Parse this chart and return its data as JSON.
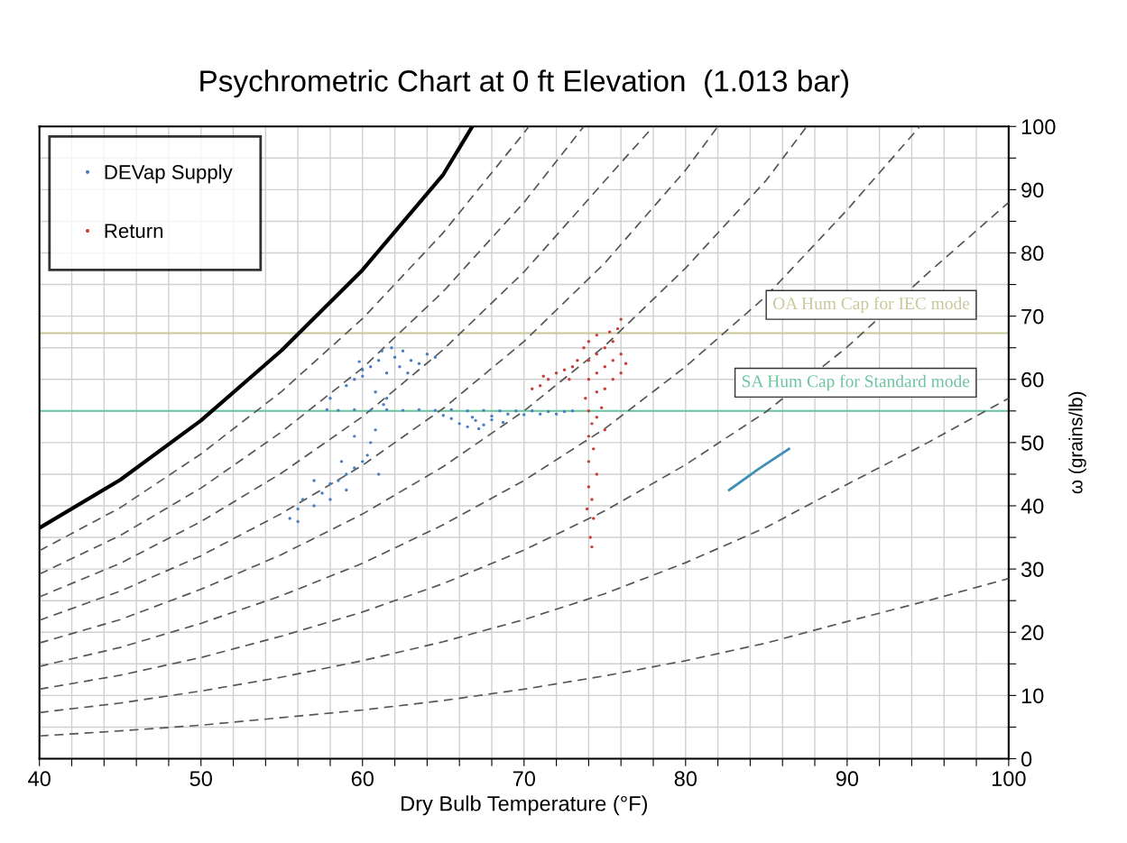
{
  "chart_data": {
    "type": "scatter",
    "title": "Psychrometric Chart at 0 ft Elevation  (1.013 bar)",
    "xlabel": "Dry Bulb Temperature (°F)",
    "ylabel": "ω (grains/lb)",
    "xlim": [
      40,
      100
    ],
    "ylim": [
      0,
      100
    ],
    "xticks": [
      40,
      {
        "value": 42,
        "label": null
      },
      {
        "value": 44,
        "label": null
      },
      {
        "value": 46,
        "label": null
      },
      {
        "value": 48,
        "label": null
      },
      50,
      {
        "value": 52,
        "label": null
      },
      {
        "value": 54,
        "label": null
      },
      {
        "value": 56,
        "label": null
      },
      {
        "value": 58,
        "label": null
      },
      60,
      {
        "value": 62,
        "label": null
      },
      {
        "value": 64,
        "label": null
      },
      {
        "value": 66,
        "label": null
      },
      {
        "value": 68,
        "label": null
      },
      70,
      {
        "value": 72,
        "label": null
      },
      {
        "value": 74,
        "label": null
      },
      {
        "value": 76,
        "label": null
      },
      {
        "value": 78,
        "label": null
      },
      80,
      {
        "value": 82,
        "label": null
      },
      {
        "value": 84,
        "label": null
      },
      {
        "value": 86,
        "label": null
      },
      {
        "value": 88,
        "label": null
      },
      90,
      {
        "value": 92,
        "label": null
      },
      {
        "value": 94,
        "label": null
      },
      {
        "value": 96,
        "label": null
      },
      {
        "value": 98,
        "label": null
      },
      100
    ],
    "yticks": [
      0,
      {
        "value": 5,
        "label": null
      },
      10,
      {
        "value": 15,
        "label": null
      },
      20,
      {
        "value": 25,
        "label": null
      },
      30,
      {
        "value": 35,
        "label": null
      },
      40,
      {
        "value": 45,
        "label": null
      },
      50,
      {
        "value": 55,
        "label": null
      },
      60,
      {
        "value": 65,
        "label": null
      },
      70,
      {
        "value": 75,
        "label": null
      },
      80,
      {
        "value": 85,
        "label": null
      },
      90,
      {
        "value": 95,
        "label": null
      },
      100
    ],
    "grid": true,
    "legend": "top left",
    "marker": "circle",
    "ref_lines": [
      {
        "axis": "y",
        "value": 67.3,
        "label": "OA Hum Cap for IEC mode",
        "color": "#c8c89a"
      },
      {
        "axis": "y",
        "value": 55,
        "label": "SA Hum Cap for Standard mode",
        "color": "#6cc4a0"
      }
    ],
    "series": [
      {
        "type": "line",
        "color": "#000000",
        "line_style": "solid",
        "marker": "none",
        "x": [
          40,
          45,
          50,
          55,
          60,
          65,
          66.8
        ],
        "values": [
          36.5,
          44.1,
          53.5,
          64.6,
          77.3,
          92.4,
          100
        ]
      },
      {
        "type": "line",
        "color": "#555555",
        "line_style": "dashed",
        "marker": "none",
        "x": [
          40,
          45,
          50,
          55,
          60,
          65,
          70,
          70.3
        ],
        "values": [
          32.9,
          39.7,
          48.2,
          58.1,
          69.6,
          83.2,
          99,
          100
        ]
      },
      {
        "type": "line",
        "color": "#555555",
        "line_style": "dashed",
        "marker": "none",
        "x": [
          40,
          45,
          50,
          55,
          60,
          65,
          70,
          73.7
        ],
        "values": [
          29.2,
          35.3,
          42.8,
          51.7,
          61.8,
          73.9,
          88,
          100
        ]
      },
      {
        "type": "line",
        "color": "#555555",
        "line_style": "dashed",
        "marker": "none",
        "x": [
          40,
          45,
          50,
          55,
          60,
          65,
          70,
          75,
          78
        ],
        "values": [
          25.6,
          30.9,
          37.5,
          45.2,
          54.1,
          64.7,
          77,
          91.4,
          100
        ]
      },
      {
        "type": "line",
        "color": "#555555",
        "line_style": "dashed",
        "marker": "none",
        "x": [
          40,
          45,
          50,
          55,
          60,
          65,
          70,
          75,
          80,
          82
        ],
        "values": [
          21.9,
          26.5,
          32.1,
          38.8,
          46.4,
          55.4,
          66,
          78.4,
          93.1,
          100
        ]
      },
      {
        "type": "line",
        "color": "#555555",
        "line_style": "dashed",
        "marker": "none",
        "x": [
          40,
          45,
          50,
          55,
          60,
          65,
          70,
          75,
          80,
          85,
          87.5
        ],
        "values": [
          18.3,
          22,
          26.8,
          32.3,
          38.7,
          46.2,
          55,
          65.3,
          77.6,
          91.5,
          100
        ]
      },
      {
        "type": "line",
        "color": "#555555",
        "line_style": "dashed",
        "marker": "none",
        "x": [
          40,
          45,
          50,
          55,
          60,
          65,
          70,
          75,
          80,
          85,
          90,
          94.5
        ],
        "values": [
          14.6,
          17.6,
          21.4,
          25.8,
          30.9,
          37,
          44,
          52.2,
          62,
          73.2,
          86.8,
          100
        ]
      },
      {
        "type": "line",
        "color": "#555555",
        "line_style": "dashed",
        "marker": "none",
        "x": [
          40,
          45,
          50,
          55,
          60,
          65,
          70,
          75,
          80,
          85,
          90,
          95,
          100
        ],
        "values": [
          11,
          13.2,
          16,
          19.4,
          23.2,
          27.7,
          33,
          39.2,
          46.5,
          54.9,
          65.1,
          76.8,
          88
        ]
      },
      {
        "type": "line",
        "color": "#555555",
        "line_style": "dashed",
        "marker": "none",
        "x": [
          40,
          45,
          50,
          55,
          60,
          65,
          70,
          75,
          80,
          85,
          90,
          95,
          100
        ],
        "values": [
          7.3,
          8.8,
          10.7,
          12.9,
          15.5,
          18.5,
          22,
          26.1,
          31,
          36.6,
          43.4,
          50,
          57
        ]
      },
      {
        "type": "line",
        "color": "#555555",
        "line_style": "dashed",
        "marker": "none",
        "x": [
          40,
          45,
          50,
          55,
          60,
          65,
          70,
          75,
          80,
          85,
          90,
          95,
          100
        ],
        "values": [
          3.6,
          4.4,
          5.3,
          6.5,
          7.7,
          9.2,
          11,
          13.1,
          15.5,
          18.3,
          21.7,
          25,
          28.5
        ]
      },
      {
        "name": "DEVap Supply",
        "color": "#4a7fc1",
        "x": [
          57.8,
          58.5,
          59.5,
          60.5,
          61.5,
          62.5,
          63.5,
          64.5,
          65.5,
          66.5,
          67.5,
          68.5,
          69.5,
          70.5,
          71.5,
          72.5,
          73.0,
          69,
          70,
          71,
          72,
          68,
          65.5,
          66,
          66.5,
          67,
          67.5,
          68,
          66.8,
          65,
          67.2,
          68.7,
          58,
          59,
          59.5,
          60,
          60.5,
          61,
          61.2,
          61.8,
          62,
          62.3,
          61.5,
          62.5,
          63,
          63.5,
          64,
          64.5,
          60.8,
          61.5,
          61.3,
          60,
          62.8,
          59.8,
          55.5,
          56,
          56.3,
          57,
          57.5,
          58,
          58.5,
          59,
          59.5,
          60,
          60.3,
          59,
          58,
          57,
          60.5,
          60.8,
          59.5,
          61,
          56,
          58.7
        ],
        "values": [
          55.2,
          55.1,
          55.2,
          55.1,
          55.2,
          55.1,
          55.2,
          55.1,
          55.2,
          55.0,
          55.1,
          55.0,
          55.0,
          55.0,
          54.9,
          54.9,
          55.0,
          54.5,
          54.4,
          54.5,
          54.5,
          54.2,
          53.8,
          53,
          52.5,
          53.5,
          52.8,
          53.6,
          54,
          54.3,
          52.2,
          53.2,
          57,
          59,
          60,
          61.5,
          62,
          63,
          64.5,
          65,
          63.5,
          62,
          61,
          64.5,
          63,
          62.5,
          64,
          63.5,
          58,
          57,
          56,
          60.5,
          61,
          62.8,
          38,
          39.5,
          41,
          40,
          42,
          43.5,
          44,
          45,
          46,
          47,
          48,
          42.5,
          41,
          44,
          50,
          52,
          51,
          45,
          37.5,
          47
        ]
      },
      {
        "name": "Return",
        "color": "#c9413a",
        "x": [
          73.8,
          74,
          74,
          74,
          74.5,
          74.5,
          74.5,
          74.5,
          75,
          75,
          75,
          75.5,
          75.5,
          75.5,
          76,
          76,
          76.3,
          75.8,
          76,
          75.3,
          73.7,
          74,
          74.2,
          74.5,
          74,
          74.3,
          74,
          74.5,
          74,
          74.2,
          73.9,
          74.3,
          74.1,
          74.2,
          74.8,
          75,
          70.5,
          71,
          71.5,
          72,
          72.5,
          73,
          73.3,
          71.2,
          72.8
        ],
        "values": [
          57,
          60,
          63,
          66,
          58,
          61,
          64,
          67,
          58.5,
          62,
          65,
          60,
          63,
          66,
          61,
          64,
          62.5,
          68,
          69.5,
          67.5,
          65,
          55,
          53,
          54,
          51,
          49,
          47,
          45,
          43,
          41,
          39.5,
          38,
          35,
          33.5,
          55.5,
          52,
          58.5,
          59,
          60,
          61,
          61.5,
          62,
          63,
          60.5,
          60
        ]
      },
      {
        "type": "line",
        "color": "#3f8fb5",
        "line_style": "solid",
        "marker": "none",
        "x": [
          82.7,
          84.5,
          86.4
        ],
        "values": [
          42.5,
          45.8,
          49.0
        ]
      }
    ]
  }
}
